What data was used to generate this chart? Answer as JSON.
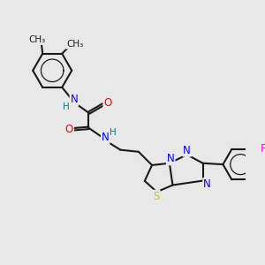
{
  "background_color": "#e8e8e8",
  "bond_color": "#1a1a1a",
  "bond_width": 1.5,
  "atom_colors": {
    "N": "#0000ff",
    "O": "#ff0000",
    "S": "#cccc00",
    "F": "#ff00ff",
    "H": "#008080",
    "C": "#1a1a1a"
  },
  "fs": 8.5
}
